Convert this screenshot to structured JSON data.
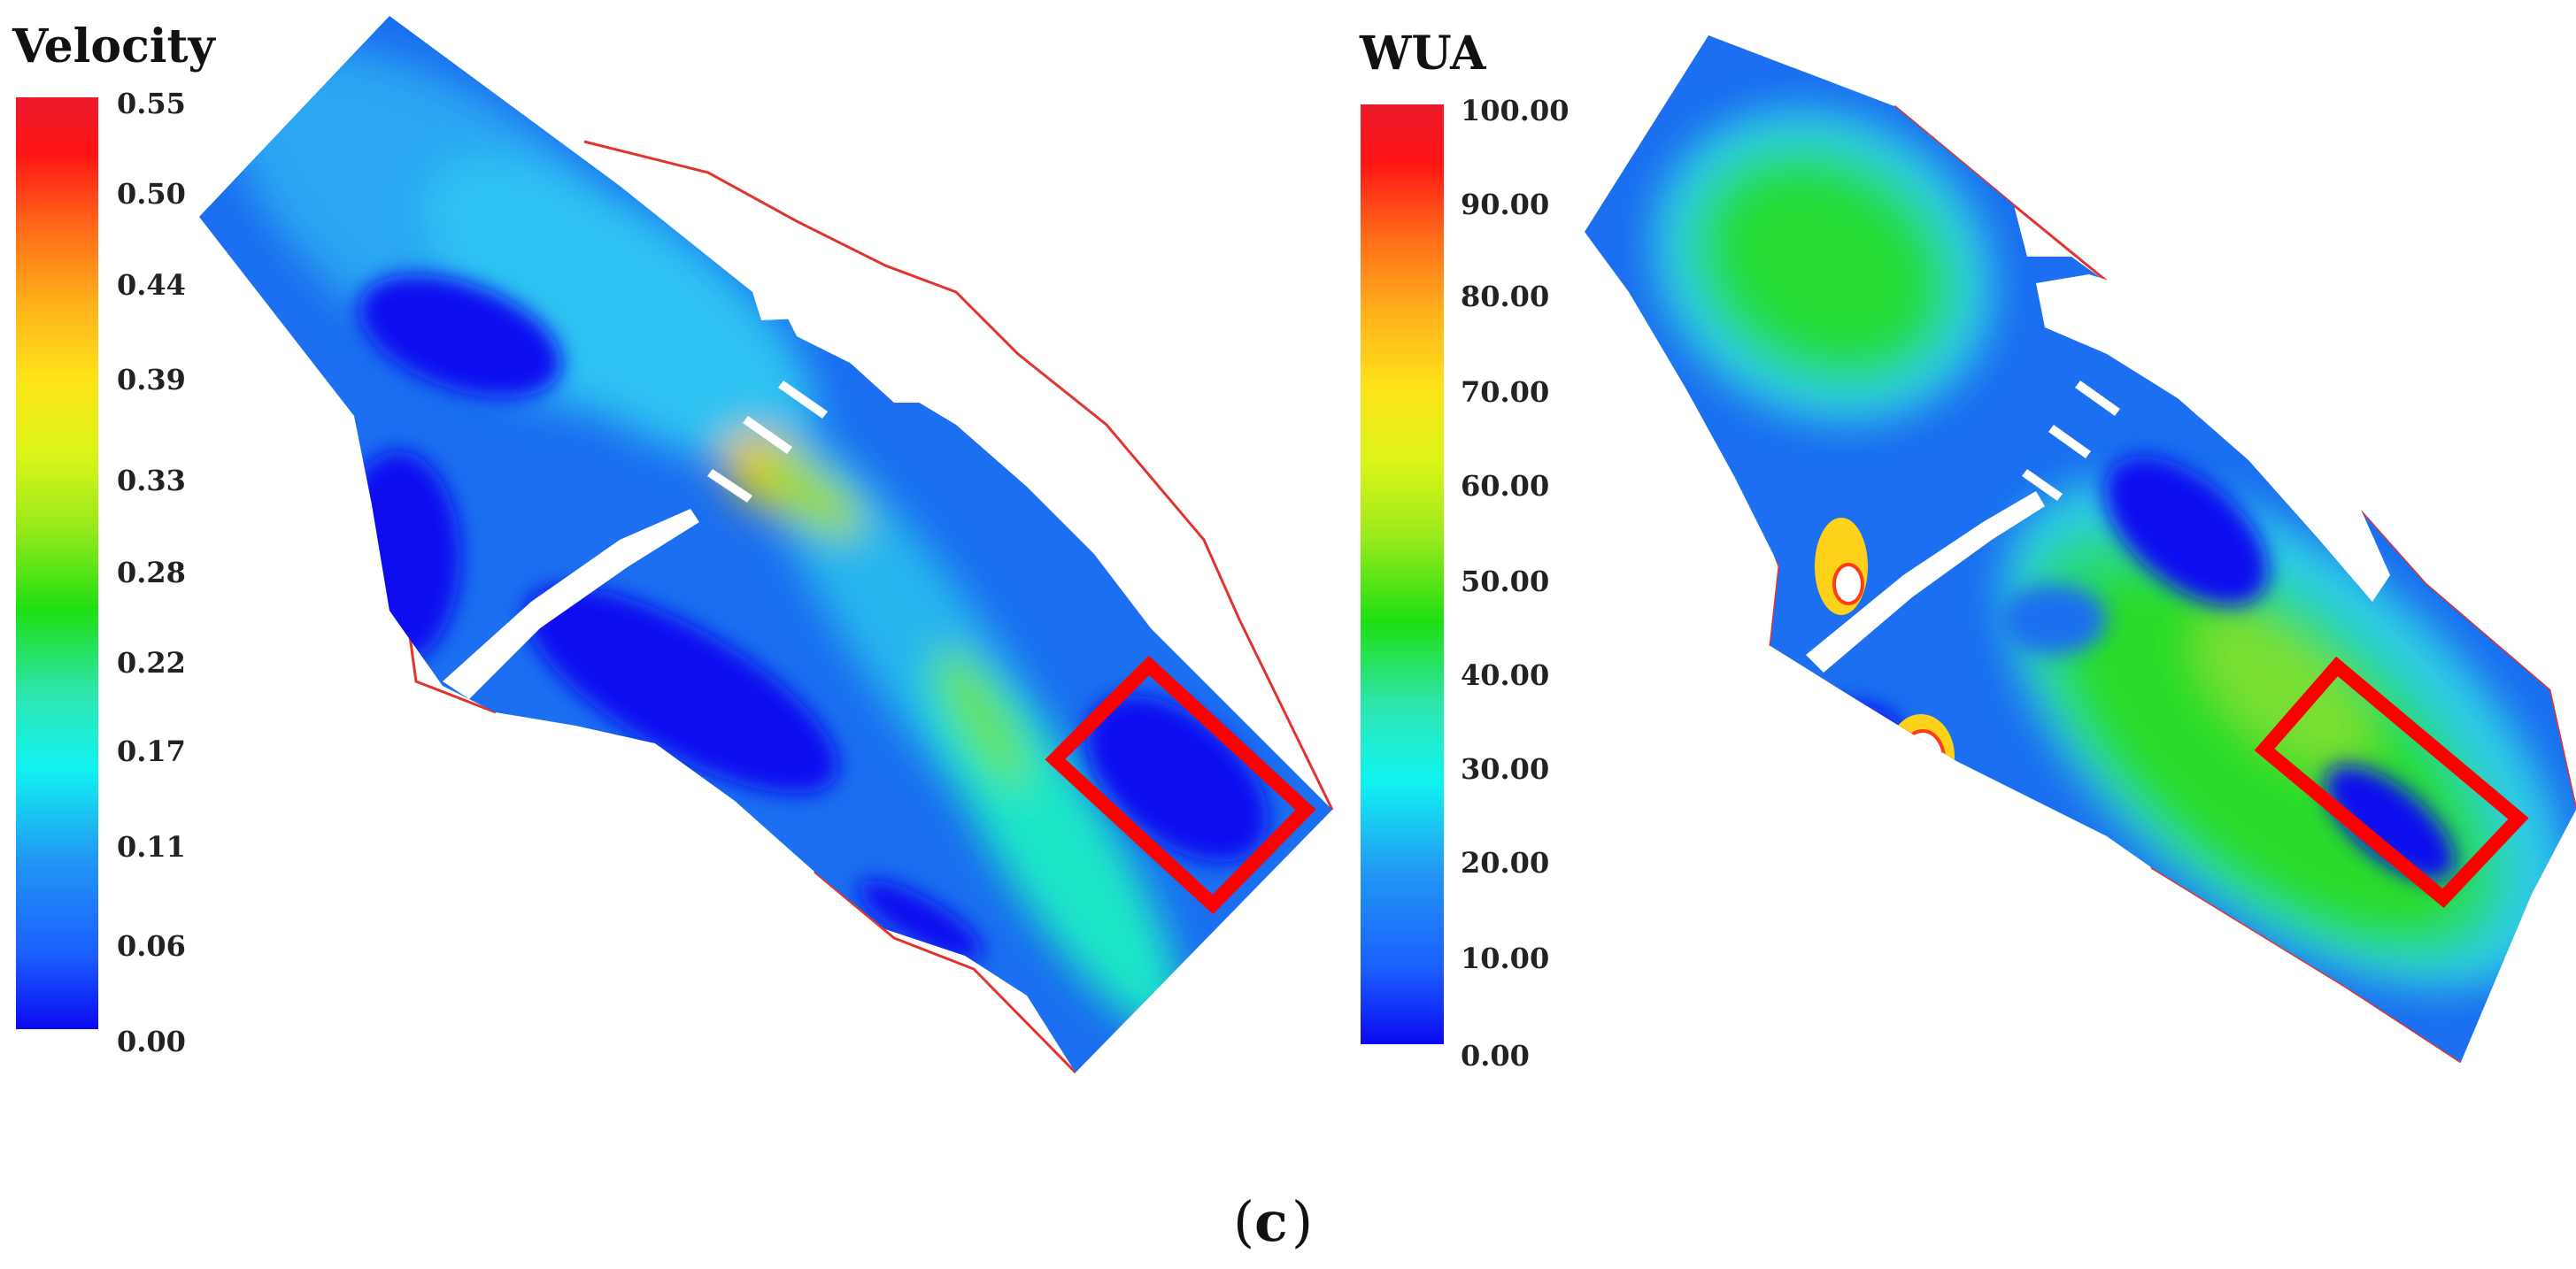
{
  "left_panel": {
    "legend_title": "Velocity",
    "ticks": [
      "0.55",
      "0.50",
      "0.44",
      "0.39",
      "0.33",
      "0.28",
      "0.22",
      "0.17",
      "0.11",
      "0.06",
      "0.00"
    ]
  },
  "right_panel": {
    "legend_title": "WUA",
    "ticks": [
      "100.00",
      "90.00",
      "80.00",
      "70.00",
      "60.00",
      "50.00",
      "40.00",
      "30.00",
      "20.00",
      "10.00",
      "0.00"
    ]
  },
  "caption": {
    "open": "(",
    "letter": "c",
    "close": ")"
  },
  "colors": {
    "scale": [
      "#1010ee",
      "#1b5fff",
      "#2196f3",
      "#2ec7f7",
      "#12f2f2",
      "#2de6b0",
      "#20dc40",
      "#1edf12",
      "#7be81a",
      "#b6ef1e",
      "#dcf51a",
      "#fff21a",
      "#ffd21a",
      "#ffb01a",
      "#ff8c1a",
      "#ff6a1a",
      "#ff3c14",
      "#ff1414",
      "#ea1a2b"
    ],
    "highlight_box": "#ff0000",
    "channel_outline": "#e2332f"
  }
}
